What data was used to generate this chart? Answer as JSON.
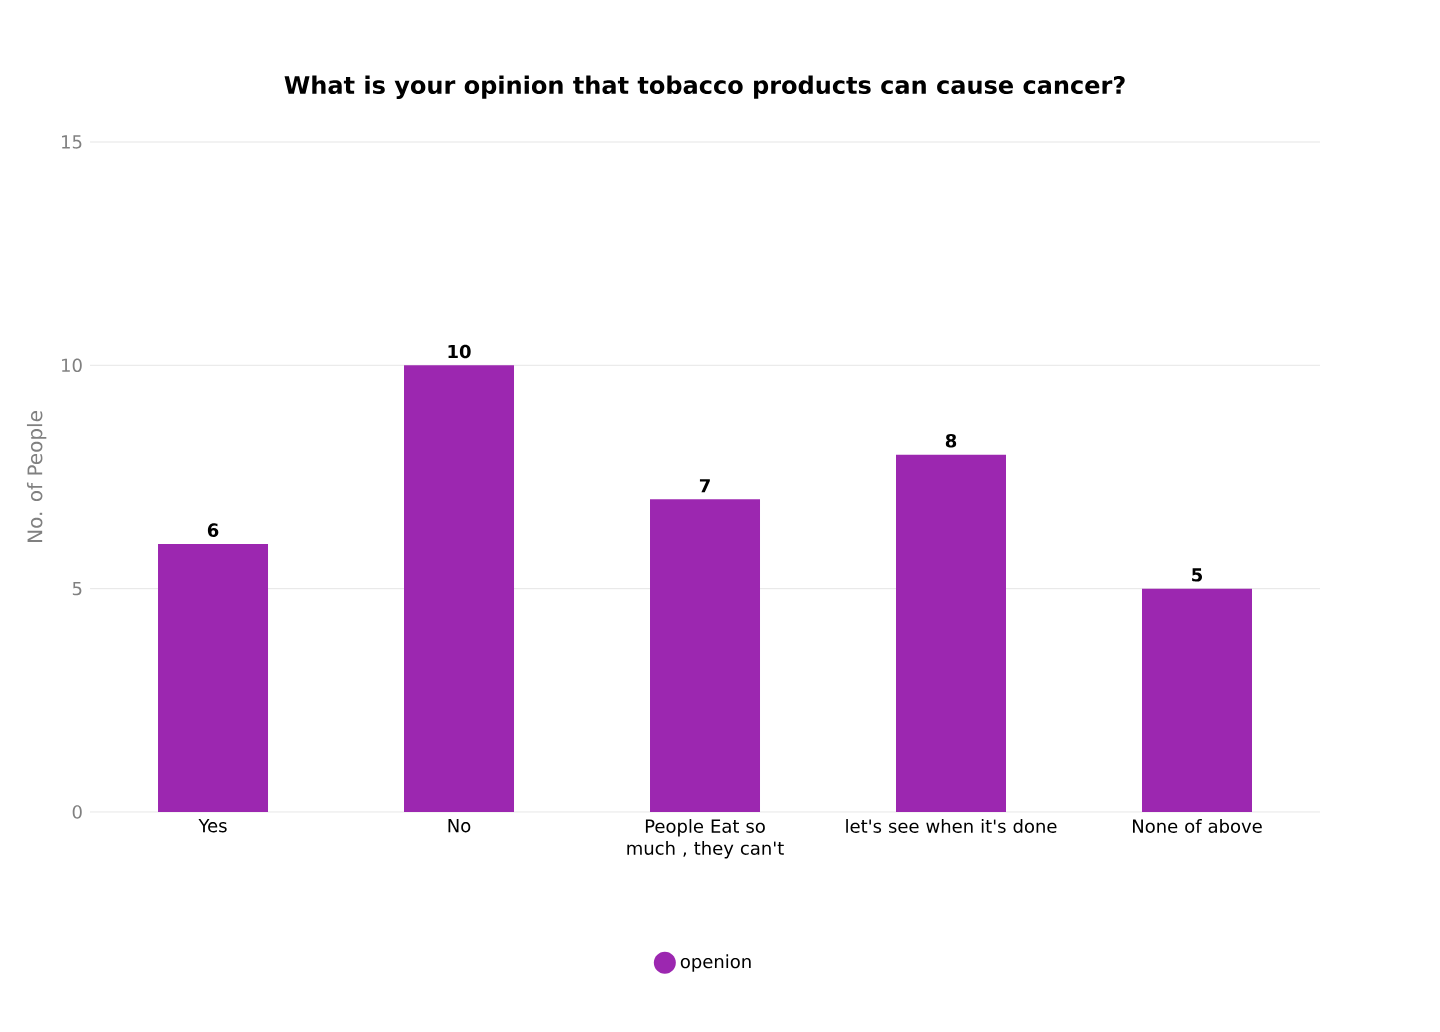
{
  "chart_data": {
    "type": "bar",
    "title": "What is your opinion that tobacco products can cause cancer?",
    "ylabel": "No. of People",
    "categories": [
      "Yes",
      "No",
      "People Eat so much , they can't",
      "let's see when it's done",
      "None of above"
    ],
    "series": [
      {
        "name": "openion",
        "color": "#9c27b0",
        "values": [
          6,
          10,
          7,
          8,
          5
        ]
      }
    ],
    "ylim": [
      0,
      15
    ],
    "yticks": [
      0,
      5,
      10,
      15
    ],
    "grid": "y",
    "legend": "bottom",
    "data_labels": true
  }
}
